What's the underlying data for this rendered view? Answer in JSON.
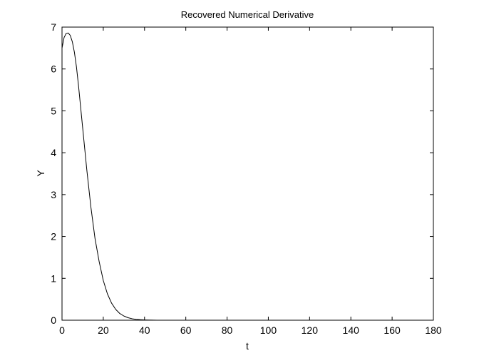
{
  "chart_data": {
    "type": "line",
    "title": "Recovered Numerical Derivative",
    "xlabel": "t",
    "ylabel": "Y",
    "xlim": [
      0,
      180
    ],
    "ylim": [
      0,
      7
    ],
    "xticks": [
      0,
      20,
      40,
      60,
      80,
      100,
      120,
      140,
      160,
      180
    ],
    "yticks": [
      0,
      1,
      2,
      3,
      4,
      5,
      6,
      7
    ],
    "grid": false,
    "series": [
      {
        "color": "#000000",
        "x": [
          0,
          1,
          2,
          3,
          4,
          5,
          6,
          7,
          8,
          9,
          10,
          12,
          14,
          16,
          18,
          20,
          22,
          24,
          26,
          28,
          30,
          32,
          34,
          36,
          38,
          40,
          42,
          44,
          46,
          50,
          60,
          80,
          100,
          120,
          140,
          160,
          180
        ],
        "y": [
          6.5,
          6.75,
          6.85,
          6.86,
          6.8,
          6.65,
          6.4,
          6.05,
          5.6,
          5.1,
          4.6,
          3.6,
          2.7,
          1.95,
          1.4,
          0.95,
          0.63,
          0.41,
          0.26,
          0.16,
          0.1,
          0.06,
          0.035,
          0.02,
          0.012,
          0.007,
          0.004,
          0.002,
          0.001,
          0.0,
          0.0,
          0.0,
          0.0,
          0.0,
          0.0,
          0.0,
          0.0
        ]
      }
    ]
  }
}
